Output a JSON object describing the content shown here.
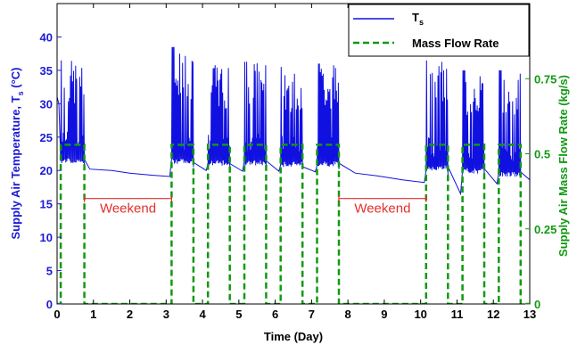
{
  "chart_data": {
    "type": "line",
    "xlabel": "Time (Day)",
    "ylabel_left": "Supply Air Temperature, T",
    "ylabel_left_sub": "s",
    "ylabel_left_unit": " (°C)",
    "ylabel_right": "Supply Air Mass Flow Rate (kg/s)",
    "xlim": [
      0,
      13
    ],
    "ylim_left": [
      0,
      45
    ],
    "ylim_right": [
      0,
      1.0
    ],
    "x_ticks": [
      "0",
      "1",
      "2",
      "3",
      "4",
      "5",
      "6",
      "7",
      "8",
      "9",
      "10",
      "11",
      "12",
      "13"
    ],
    "y_ticks_left": [
      "0",
      "5",
      "10",
      "15",
      "20",
      "25",
      "30",
      "35",
      "40"
    ],
    "y_ticks_right": [
      "0",
      "0.25",
      "0.5",
      "0.75"
    ],
    "grid": false,
    "legend_position": "top-right",
    "legend": [
      {
        "label": "T",
        "sub": "s",
        "style": "solid",
        "color": "#1010e0"
      },
      {
        "label": "Mass Flow Rate",
        "style": "dashed",
        "color": "#119911"
      }
    ],
    "annotations": [
      {
        "text": "Weekend",
        "x_range": [
          0.75,
          3.15
        ],
        "y": 15.8
      },
      {
        "text": "Weekend",
        "x_range": [
          7.75,
          10.15
        ],
        "y": 15.8
      }
    ],
    "series": [
      {
        "name": "T",
        "axis": "left",
        "color": "#1010e0",
        "day_segments": [
          {
            "start": 0.1,
            "end": 0.75,
            "base": 21.0,
            "peak": 36.5
          },
          {
            "start": 3.15,
            "end": 3.75,
            "base": 21.0,
            "peak": 38.5
          },
          {
            "start": 4.15,
            "end": 4.75,
            "base": 20.7,
            "peak": 36.0
          },
          {
            "start": 5.15,
            "end": 5.75,
            "base": 20.7,
            "peak": 36.3
          },
          {
            "start": 6.15,
            "end": 6.75,
            "base": 20.5,
            "peak": 35.5
          },
          {
            "start": 7.15,
            "end": 7.75,
            "base": 20.6,
            "peak": 36.0
          },
          {
            "start": 10.15,
            "end": 10.75,
            "base": 20.0,
            "peak": 36.5
          },
          {
            "start": 11.15,
            "end": 11.75,
            "base": 19.5,
            "peak": 35.0
          },
          {
            "start": 12.15,
            "end": 12.75,
            "base": 19.0,
            "peak": 35.0
          }
        ],
        "off_points": [
          [
            0,
            31
          ],
          [
            0.05,
            30
          ],
          [
            0.75,
            20.8
          ],
          [
            0.9,
            20.2
          ],
          [
            1.5,
            20.0
          ],
          [
            2.0,
            19.6
          ],
          [
            2.6,
            19.3
          ],
          [
            3.1,
            19.1
          ],
          [
            3.75,
            20.5
          ],
          [
            4.1,
            20.0
          ],
          [
            4.75,
            20.3
          ],
          [
            5.1,
            19.9
          ],
          [
            5.75,
            20.3
          ],
          [
            6.1,
            19.9
          ],
          [
            6.75,
            20.2
          ],
          [
            7.1,
            19.8
          ],
          [
            7.75,
            20.2
          ],
          [
            8.2,
            19.6
          ],
          [
            8.8,
            19.2
          ],
          [
            9.5,
            18.6
          ],
          [
            10.1,
            18.2
          ],
          [
            10.75,
            19.0
          ],
          [
            11.1,
            16.5
          ],
          [
            11.75,
            19.0
          ],
          [
            12.1,
            18.0
          ],
          [
            12.75,
            19.3
          ],
          [
            13,
            18.6
          ]
        ]
      },
      {
        "name": "Mass Flow Rate",
        "axis": "right",
        "color": "#119911",
        "on_value": 0.53,
        "off_value": 0.0,
        "on_intervals": [
          [
            0.1,
            0.75
          ],
          [
            3.15,
            3.75
          ],
          [
            4.15,
            4.75
          ],
          [
            5.15,
            5.75
          ],
          [
            6.15,
            6.75
          ],
          [
            7.15,
            7.75
          ],
          [
            10.15,
            10.75
          ],
          [
            11.15,
            11.75
          ],
          [
            12.15,
            12.75
          ]
        ]
      }
    ]
  }
}
